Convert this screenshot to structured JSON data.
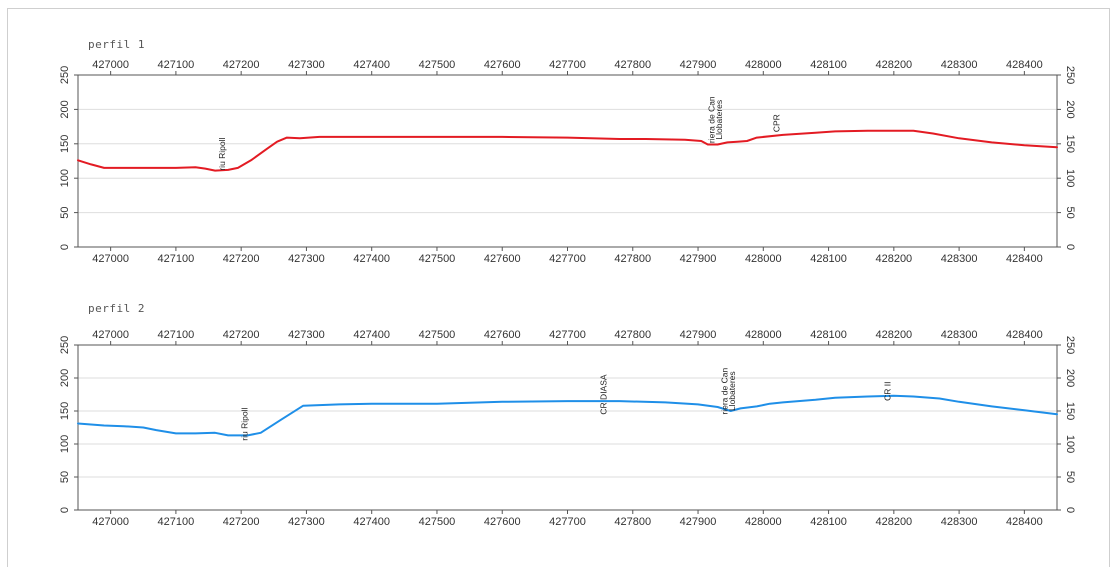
{
  "chart_data": [
    {
      "type": "line",
      "title": "perfil 1",
      "xlim": [
        426950,
        428450
      ],
      "ylim": [
        0,
        250
      ],
      "x_ticks": [
        "427000",
        "427100",
        "427200",
        "427300",
        "427400",
        "427500",
        "427600",
        "427700",
        "427800",
        "427900",
        "428000",
        "428100",
        "428200",
        "428300",
        "428400"
      ],
      "y_ticks": [
        "0",
        "50",
        "100",
        "150",
        "200",
        "250"
      ],
      "grid": true,
      "color": "#e31b23",
      "x": [
        426950,
        426970,
        426990,
        427050,
        427100,
        427130,
        427145,
        427160,
        427180,
        427195,
        427215,
        427240,
        427255,
        427270,
        427290,
        427320,
        427400,
        427500,
        427600,
        427700,
        427780,
        427820,
        427880,
        427905,
        427915,
        427930,
        427945,
        427960,
        427975,
        427990,
        428030,
        428080,
        428110,
        428160,
        428230,
        428260,
        428300,
        428350,
        428400,
        428450
      ],
      "values": [
        126,
        120,
        115,
        115,
        115,
        116,
        114,
        111,
        112,
        115,
        126,
        143,
        153,
        159,
        158,
        160,
        160,
        160,
        160,
        159,
        157,
        157,
        156,
        154,
        149,
        149,
        152,
        153,
        154,
        159,
        163,
        166,
        168,
        169,
        169,
        165,
        158,
        152,
        148,
        145
      ],
      "annotations": [
        {
          "text": "riu Ripoll",
          "x": 427175,
          "y": 135
        },
        {
          "text": "riera de Can",
          "x": 427925,
          "y": 185
        },
        {
          "text": "Llobateres",
          "x": 427937,
          "y": 185
        },
        {
          "text": "CPR",
          "x": 428025,
          "y": 180
        }
      ]
    },
    {
      "type": "line",
      "title": "perfil 2",
      "xlim": [
        426950,
        428450
      ],
      "ylim": [
        0,
        250
      ],
      "x_ticks": [
        "427000",
        "427100",
        "427200",
        "427300",
        "427400",
        "427500",
        "427600",
        "427700",
        "427800",
        "427900",
        "428000",
        "428100",
        "428200",
        "428300",
        "428400"
      ],
      "y_ticks": [
        "0",
        "50",
        "100",
        "150",
        "200",
        "250"
      ],
      "grid": true,
      "color": "#1f8fe8",
      "x": [
        426950,
        426990,
        427020,
        427050,
        427070,
        427100,
        427130,
        427160,
        427180,
        427195,
        427210,
        427230,
        427260,
        427295,
        427350,
        427400,
        427500,
        427600,
        427700,
        427780,
        427850,
        427900,
        427930,
        427950,
        427965,
        427990,
        428010,
        428030,
        428080,
        428110,
        428160,
        428200,
        428230,
        428270,
        428300,
        428350,
        428400,
        428450
      ],
      "values": [
        131,
        128,
        127,
        125,
        121,
        116,
        116,
        117,
        113,
        113,
        113,
        117,
        136,
        158,
        160,
        161,
        161,
        164,
        165,
        165,
        163,
        160,
        156,
        150,
        154,
        157,
        161,
        163,
        167,
        170,
        172,
        173,
        172,
        169,
        164,
        157,
        151,
        145
      ],
      "annotations": [
        {
          "text": "riu Ripoll",
          "x": 427210,
          "y": 130
        },
        {
          "text": "CR DIASA",
          "x": 427760,
          "y": 175
        },
        {
          "text": "riera de Can",
          "x": 427945,
          "y": 180
        },
        {
          "text": "Llobateres",
          "x": 427957,
          "y": 180
        },
        {
          "text": "CR II",
          "x": 428195,
          "y": 180
        }
      ]
    }
  ]
}
